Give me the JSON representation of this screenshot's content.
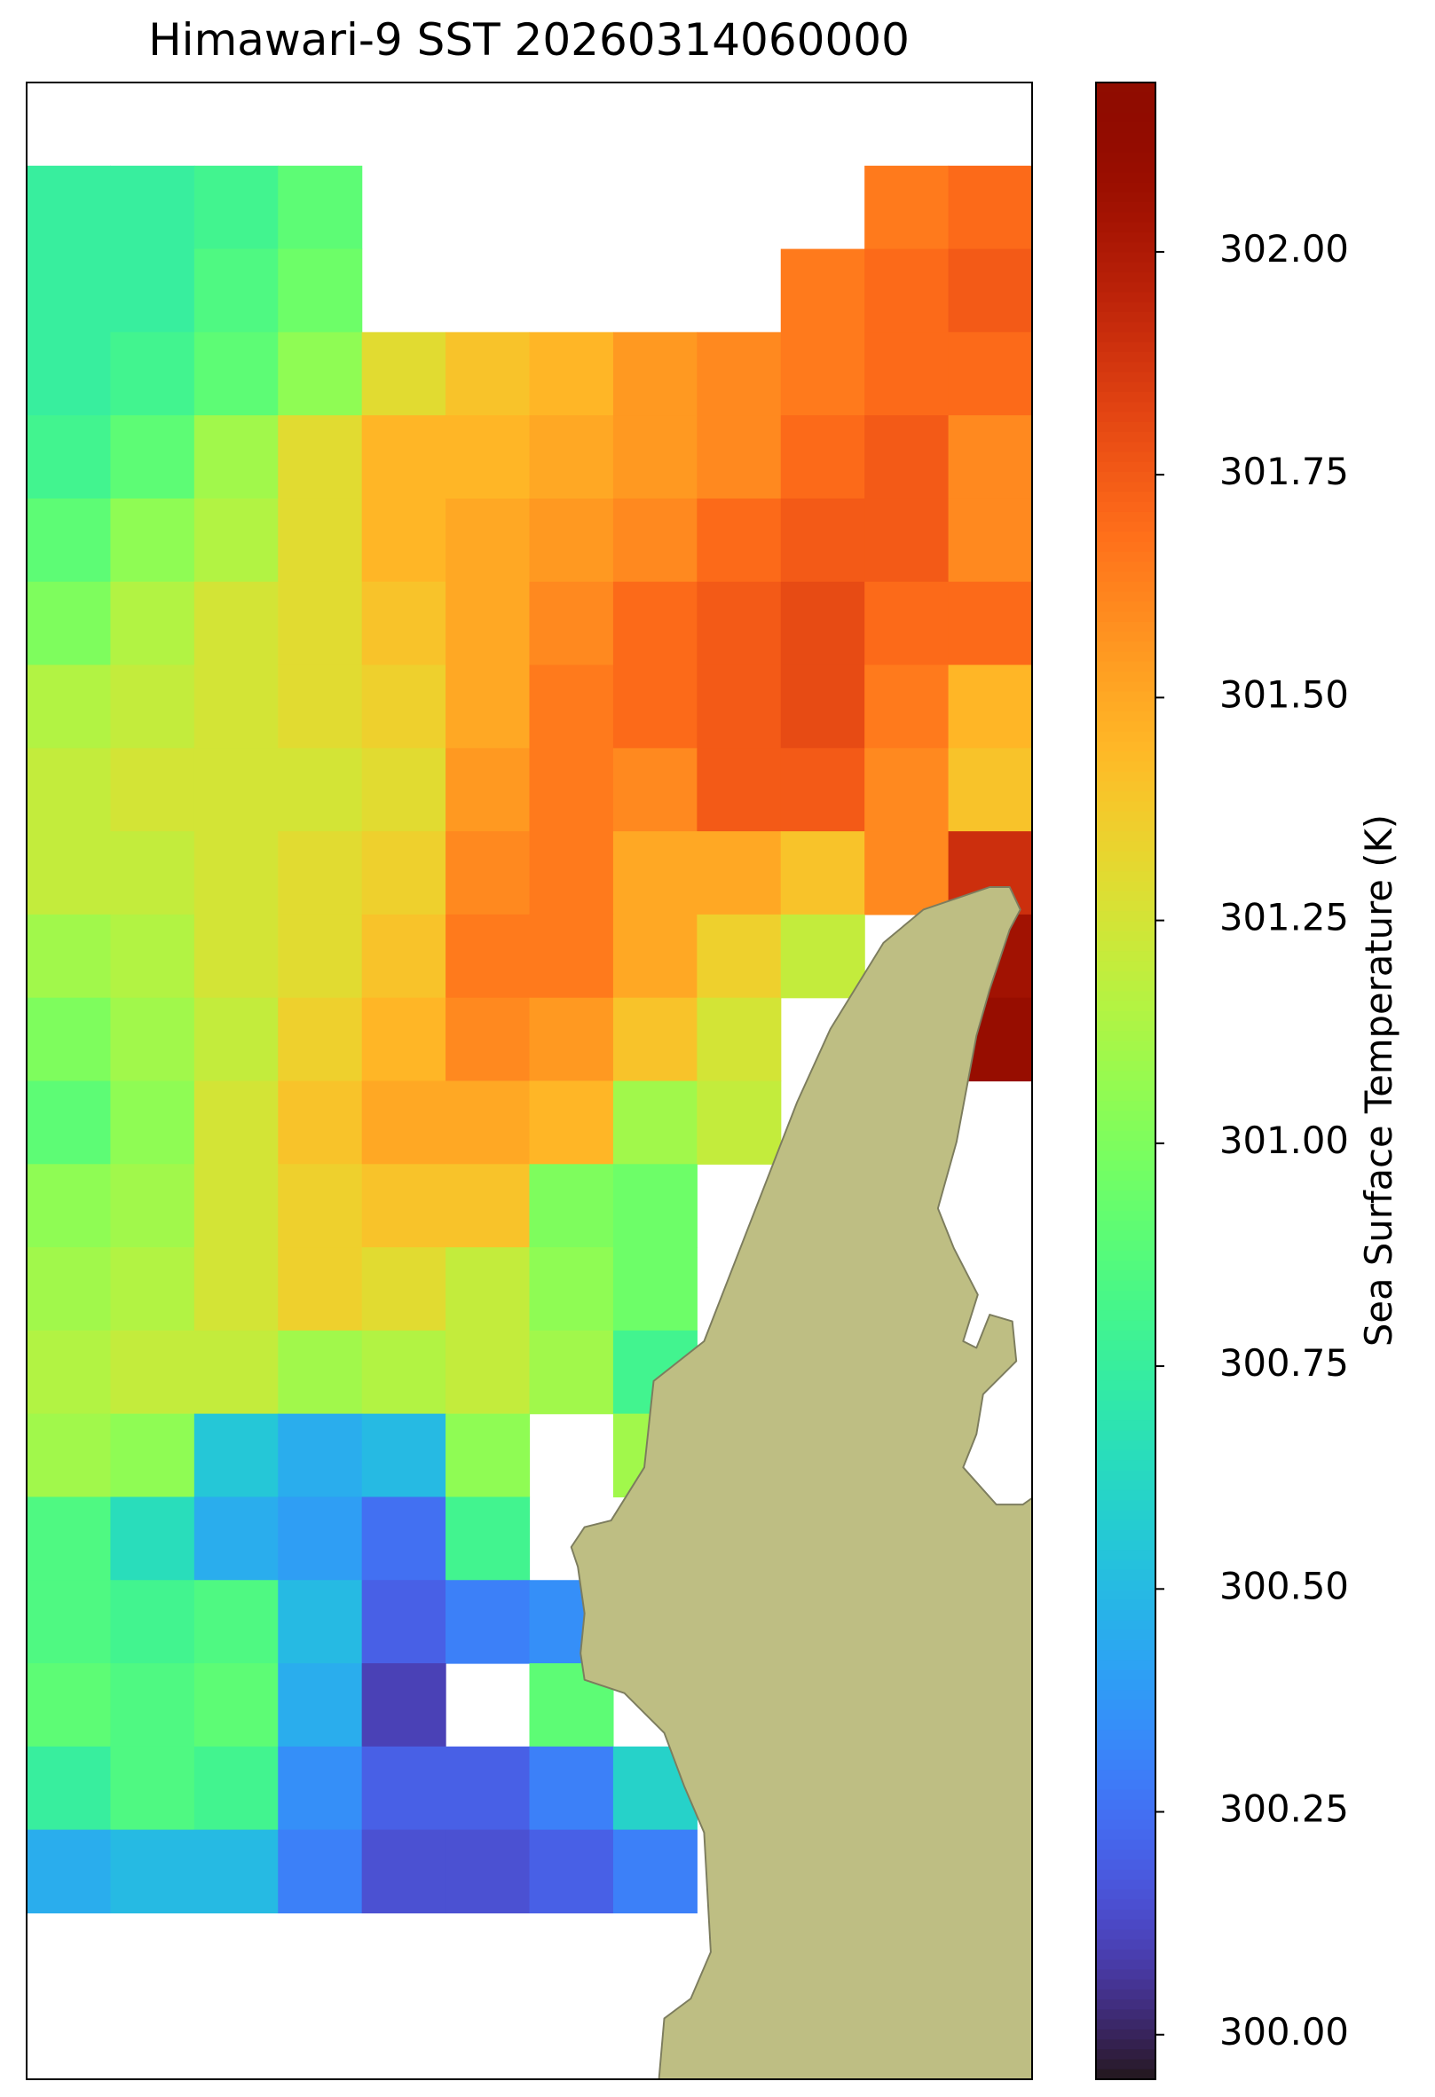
{
  "chart_data": {
    "type": "heatmap",
    "title": "Himawari-9 SST 20260314060000",
    "colormap": "turbo",
    "clim": [
      299.95,
      302.19
    ],
    "colorbar_label": "Sea Surface Temperature (K)",
    "colorbar_ticks": [
      {
        "value": 300.0,
        "label": "300.00"
      },
      {
        "value": 300.25,
        "label": "300.25"
      },
      {
        "value": 300.5,
        "label": "300.50"
      },
      {
        "value": 300.75,
        "label": "300.75"
      },
      {
        "value": 301.0,
        "label": "301.00"
      },
      {
        "value": 301.25,
        "label": "301.25"
      },
      {
        "value": 301.5,
        "label": "301.50"
      },
      {
        "value": 301.75,
        "label": "301.75"
      },
      {
        "value": 302.0,
        "label": "302.00"
      }
    ],
    "values": [
      [
        null,
        null,
        null,
        null,
        null,
        null,
        null,
        null,
        null,
        null,
        null,
        null
      ],
      [
        300.75,
        300.75,
        300.8,
        300.9,
        null,
        null,
        null,
        null,
        null,
        null,
        301.65,
        301.7
      ],
      [
        300.75,
        300.75,
        300.85,
        300.95,
        null,
        null,
        null,
        null,
        null,
        301.65,
        301.7,
        301.75
      ],
      [
        300.75,
        300.8,
        300.9,
        301.05,
        301.3,
        301.4,
        301.45,
        301.55,
        301.6,
        301.65,
        301.7,
        301.7
      ],
      [
        300.8,
        300.9,
        301.1,
        301.3,
        301.45,
        301.45,
        301.5,
        301.55,
        301.6,
        301.7,
        301.75,
        301.6
      ],
      [
        300.9,
        301.05,
        301.15,
        301.3,
        301.45,
        301.5,
        301.55,
        301.6,
        301.7,
        301.75,
        301.75,
        301.6
      ],
      [
        301.0,
        301.15,
        301.25,
        301.3,
        301.4,
        301.5,
        301.6,
        301.7,
        301.75,
        301.8,
        301.7,
        301.7
      ],
      [
        301.15,
        301.2,
        301.25,
        301.3,
        301.35,
        301.5,
        301.65,
        301.7,
        301.75,
        301.8,
        301.65,
        301.45
      ],
      [
        301.2,
        301.25,
        301.25,
        301.25,
        301.3,
        301.55,
        301.65,
        301.6,
        301.75,
        301.75,
        301.6,
        301.4
      ],
      [
        301.2,
        301.2,
        301.25,
        301.3,
        301.35,
        301.6,
        301.65,
        301.5,
        301.5,
        301.4,
        301.6,
        301.9
      ],
      [
        301.1,
        301.15,
        301.25,
        301.3,
        301.4,
        301.65,
        301.65,
        301.5,
        301.35,
        301.2,
        null,
        302.05
      ],
      [
        301.0,
        301.1,
        301.2,
        301.35,
        301.45,
        301.6,
        301.55,
        301.4,
        301.25,
        null,
        null,
        302.1
      ],
      [
        300.9,
        301.05,
        301.25,
        301.4,
        301.5,
        301.5,
        301.45,
        301.1,
        301.2,
        null,
        null,
        null
      ],
      [
        301.05,
        301.1,
        301.25,
        301.35,
        301.4,
        301.4,
        301.0,
        300.95,
        null,
        null,
        null,
        null
      ],
      [
        301.1,
        301.15,
        301.25,
        301.35,
        301.3,
        301.2,
        301.05,
        300.95,
        null,
        null,
        null,
        null
      ],
      [
        301.15,
        301.2,
        301.2,
        301.1,
        301.15,
        301.2,
        301.1,
        300.8,
        null,
        null,
        null,
        null
      ],
      [
        301.1,
        301.05,
        300.55,
        300.45,
        300.5,
        301.05,
        null,
        301.1,
        null,
        null,
        null,
        null
      ],
      [
        300.85,
        300.65,
        300.45,
        300.4,
        300.25,
        300.8,
        null,
        null,
        null,
        null,
        null,
        null
      ],
      [
        300.85,
        300.8,
        300.85,
        300.5,
        300.2,
        300.3,
        300.35,
        null,
        null,
        null,
        null,
        null
      ],
      [
        300.9,
        300.85,
        300.9,
        300.45,
        300.1,
        null,
        300.9,
        null,
        null,
        null,
        null,
        null
      ],
      [
        300.75,
        300.85,
        300.8,
        300.35,
        300.2,
        300.2,
        300.3,
        300.6,
        null,
        null,
        null,
        null
      ],
      [
        300.45,
        300.5,
        300.5,
        300.3,
        300.15,
        300.15,
        300.2,
        300.3,
        null,
        null,
        null,
        null
      ],
      [
        null,
        null,
        null,
        null,
        null,
        null,
        null,
        null,
        null,
        null,
        null,
        null
      ],
      [
        null,
        null,
        null,
        null,
        null,
        null,
        null,
        null,
        null,
        null,
        null,
        null
      ]
    ]
  }
}
